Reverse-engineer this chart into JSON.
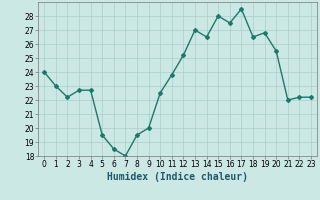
{
  "x": [
    0,
    1,
    2,
    3,
    4,
    5,
    6,
    7,
    8,
    9,
    10,
    11,
    12,
    13,
    14,
    15,
    16,
    17,
    18,
    19,
    20,
    21,
    22,
    23
  ],
  "y": [
    24.0,
    23.0,
    22.2,
    22.7,
    22.7,
    19.5,
    18.5,
    18.0,
    19.5,
    20.0,
    22.5,
    23.8,
    25.2,
    27.0,
    26.5,
    28.0,
    27.5,
    28.5,
    26.5,
    26.8,
    25.5,
    22.0,
    22.2,
    22.2
  ],
  "line_color": "#1a7a6a",
  "marker": "D",
  "marker_size": 2.0,
  "bg_color": "#cce8e4",
  "grid_color": "#aacfcb",
  "xlabel": "Humidex (Indice chaleur)",
  "xlim": [
    -0.5,
    23.5
  ],
  "ylim": [
    18,
    29
  ],
  "yticks": [
    18,
    19,
    20,
    21,
    22,
    23,
    24,
    25,
    26,
    27,
    28
  ],
  "xticks": [
    0,
    1,
    2,
    3,
    4,
    5,
    6,
    7,
    8,
    9,
    10,
    11,
    12,
    13,
    14,
    15,
    16,
    17,
    18,
    19,
    20,
    21,
    22,
    23
  ],
  "tick_fontsize": 5.5,
  "xlabel_fontsize": 7.0,
  "linewidth": 1.0
}
